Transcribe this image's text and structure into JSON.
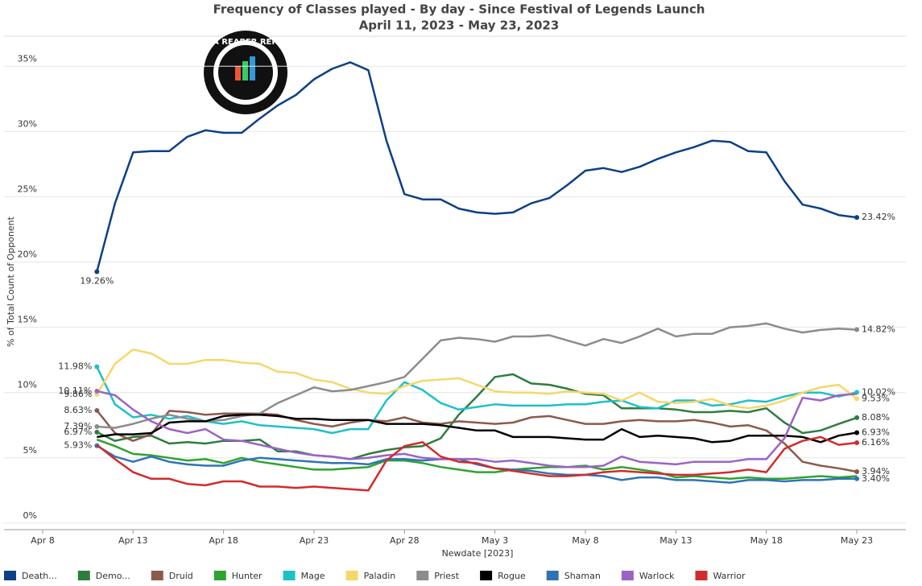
{
  "chart_data": {
    "type": "line",
    "title": "Frequency of Classes played - By day - Since Festival of Legends Launch",
    "subtitle": "April 11, 2023 - May 23, 2023",
    "y_label": "% of Total Count of Opponent",
    "x_label": "Newdate [2023]",
    "logo": "DATA REAPER REPORT",
    "x": [
      "Apr 11",
      "Apr 12",
      "Apr 13",
      "Apr 14",
      "Apr 15",
      "Apr 16",
      "Apr 17",
      "Apr 18",
      "Apr 19",
      "Apr 20",
      "Apr 21",
      "Apr 22",
      "Apr 23",
      "Apr 24",
      "Apr 25",
      "Apr 26",
      "Apr 27",
      "Apr 28",
      "Apr 29",
      "Apr 30",
      "May 1",
      "May 2",
      "May 3",
      "May 4",
      "May 5",
      "May 6",
      "May 7",
      "May 8",
      "May 9",
      "May 10",
      "May 11",
      "May 12",
      "May 13",
      "May 14",
      "May 15",
      "May 16",
      "May 17",
      "May 18",
      "May 19",
      "May 20",
      "May 21",
      "May 22",
      "May 23"
    ],
    "xlim": [
      "Apr 6",
      "May 25"
    ],
    "xticks": [
      "Apr 8",
      "Apr 13",
      "Apr 18",
      "Apr 23",
      "Apr 28",
      "May 3",
      "May 8",
      "May 13",
      "May 18",
      "May 23"
    ],
    "ylim": [
      -0.5,
      37.3
    ],
    "yticks": [
      {
        "value": 0,
        "label": "0%"
      },
      {
        "value": 5,
        "label": "5%"
      },
      {
        "value": 10,
        "label": "10%"
      },
      {
        "value": 15,
        "label": "15%"
      },
      {
        "value": 20,
        "label": "20%"
      },
      {
        "value": 25,
        "label": "25%"
      },
      {
        "value": 30,
        "label": "30%"
      },
      {
        "value": 35,
        "label": "35%"
      }
    ],
    "grid": true,
    "legend": "bottom",
    "series": [
      {
        "name": "Death...",
        "color": "#0e3f87",
        "values": [
          19.26,
          24.5,
          28.4,
          28.5,
          28.5,
          29.6,
          30.1,
          29.9,
          29.9,
          31,
          32,
          32.8,
          34,
          34.8,
          35.3,
          34.7,
          29.3,
          25.2,
          24.8,
          24.8,
          24.1,
          23.8,
          23.7,
          23.8,
          24.5,
          24.9,
          25.9,
          27,
          27.2,
          26.9,
          27.3,
          27.9,
          28.4,
          28.8,
          29.3,
          29.2,
          28.5,
          28.4,
          26.2,
          24.4,
          24.1,
          23.6,
          23.42
        ],
        "value_labels": [
          "19.26%",
          null,
          null,
          null,
          null,
          null,
          null,
          null,
          null,
          null,
          null,
          null,
          null,
          null,
          null,
          null,
          null,
          null,
          null,
          null,
          null,
          null,
          null,
          null,
          null,
          null,
          null,
          null,
          null,
          null,
          null,
          null,
          null,
          null,
          null,
          null,
          null,
          null,
          null,
          null,
          null,
          null,
          "23.42%"
        ]
      },
      {
        "name": "Demo...",
        "color": "#2e7d3e",
        "values": [
          6.97,
          6.3,
          6.6,
          6.7,
          6.1,
          6.2,
          6.1,
          6.3,
          6.3,
          6.4,
          5.5,
          5.5,
          5.2,
          5.1,
          4.9,
          5.3,
          5.6,
          5.8,
          5.9,
          6.5,
          8.3,
          9.7,
          11.2,
          11.4,
          10.7,
          10.6,
          10.3,
          9.9,
          9.8,
          8.8,
          8.8,
          8.8,
          8.7,
          8.5,
          8.5,
          8.6,
          8.5,
          8.8,
          7.7,
          6.9,
          7.1,
          7.6,
          8.08
        ],
        "value_labels": [
          "6.97%",
          null,
          null,
          null,
          null,
          null,
          null,
          null,
          null,
          null,
          null,
          null,
          null,
          null,
          null,
          null,
          null,
          null,
          null,
          null,
          null,
          null,
          null,
          null,
          null,
          null,
          null,
          null,
          null,
          null,
          null,
          null,
          null,
          null,
          null,
          null,
          null,
          null,
          null,
          null,
          null,
          null,
          "8.08%"
        ]
      },
      {
        "name": "Druid",
        "color": "#8c5a4c",
        "values": [
          8.63,
          6.9,
          6.3,
          6.8,
          8.6,
          8.5,
          8.3,
          8.4,
          8.4,
          8.4,
          8.3,
          7.9,
          7.6,
          7.4,
          7.7,
          7.9,
          7.8,
          8.1,
          7.7,
          7.6,
          7.8,
          7.7,
          7.6,
          7.7,
          8.1,
          8.2,
          7.9,
          7.6,
          7.6,
          7.8,
          7.9,
          7.8,
          7.8,
          7.9,
          7.7,
          7.4,
          7.5,
          7.1,
          6.1,
          4.7,
          4.4,
          4.2,
          3.94
        ],
        "value_labels": [
          "8.63%",
          null,
          null,
          null,
          null,
          null,
          null,
          null,
          null,
          null,
          null,
          null,
          null,
          null,
          null,
          null,
          null,
          null,
          null,
          null,
          null,
          null,
          null,
          null,
          null,
          null,
          null,
          null,
          null,
          null,
          null,
          null,
          null,
          null,
          null,
          null,
          null,
          null,
          null,
          null,
          null,
          null,
          "3.94%"
        ]
      },
      {
        "name": "Hunter",
        "color": "#2ea32e",
        "values": [
          6.4,
          5.9,
          5.3,
          5.2,
          5.0,
          4.8,
          4.9,
          4.6,
          5.0,
          4.7,
          4.5,
          4.3,
          4.1,
          4.1,
          4.2,
          4.3,
          4.8,
          4.8,
          4.6,
          4.3,
          4.1,
          3.9,
          3.9,
          4.1,
          4.2,
          4.3,
          4.3,
          4.4,
          4.1,
          4.3,
          4.1,
          3.9,
          3.5,
          3.6,
          3.5,
          3.4,
          3.5,
          3.4,
          3.4,
          3.5,
          3.6,
          3.5,
          3.6
        ]
      },
      {
        "name": "Mage",
        "color": "#1fc0c8",
        "values": [
          11.98,
          9.1,
          8.1,
          8.3,
          8.0,
          8.2,
          7.8,
          7.6,
          7.8,
          7.5,
          7.4,
          7.3,
          7.2,
          6.9,
          7.2,
          7.2,
          9.4,
          10.8,
          10.2,
          9.2,
          8.7,
          8.9,
          9.1,
          9.0,
          9.0,
          9.0,
          9.1,
          9.1,
          9.3,
          9.4,
          8.9,
          8.8,
          9.4,
          9.4,
          9.0,
          9.1,
          9.4,
          9.3,
          9.7,
          10.0,
          10.0,
          9.7,
          10.02
        ],
        "value_labels": [
          "11.98%",
          null,
          null,
          null,
          null,
          null,
          null,
          null,
          null,
          null,
          null,
          null,
          null,
          null,
          null,
          null,
          null,
          null,
          null,
          null,
          null,
          null,
          null,
          null,
          null,
          null,
          null,
          null,
          null,
          null,
          null,
          null,
          null,
          null,
          null,
          null,
          null,
          null,
          null,
          null,
          null,
          null,
          "10.02%"
        ]
      },
      {
        "name": "Paladin",
        "color": "#f5d76a",
        "values": [
          9.86,
          12.2,
          13.3,
          13.0,
          12.2,
          12.2,
          12.5,
          12.5,
          12.3,
          12.2,
          11.6,
          11.5,
          11.0,
          10.8,
          10.3,
          10.0,
          9.9,
          10.5,
          10.9,
          11.0,
          11.1,
          10.6,
          10.1,
          10.0,
          10.0,
          9.9,
          10.1,
          10.0,
          9.9,
          9.4,
          10.0,
          9.3,
          9.2,
          9.3,
          9.5,
          9.0,
          8.8,
          9.0,
          9.4,
          10.0,
          10.4,
          10.6,
          9.53
        ],
        "value_labels": [
          "9.86%",
          null,
          null,
          null,
          null,
          null,
          null,
          null,
          null,
          null,
          null,
          null,
          null,
          null,
          null,
          null,
          null,
          null,
          null,
          null,
          null,
          null,
          null,
          null,
          null,
          null,
          null,
          null,
          null,
          null,
          null,
          null,
          null,
          null,
          null,
          null,
          null,
          null,
          null,
          null,
          null,
          null,
          "9.53%"
        ]
      },
      {
        "name": "Priest",
        "color": "#8c8c8c",
        "values": [
          7.39,
          7.3,
          7.6,
          8.0,
          8.3,
          8.0,
          7.8,
          7.9,
          8.2,
          8.4,
          9.2,
          9.8,
          10.4,
          10.1,
          10.2,
          10.5,
          10.8,
          11.2,
          12.6,
          14.0,
          14.2,
          14.1,
          13.9,
          14.3,
          14.3,
          14.4,
          14.0,
          13.6,
          14.1,
          13.8,
          14.3,
          14.9,
          14.3,
          14.5,
          14.5,
          15.0,
          15.1,
          15.3,
          14.9,
          14.6,
          14.8,
          14.9,
          14.82
        ],
        "value_labels": [
          "7.39%",
          null,
          null,
          null,
          null,
          null,
          null,
          null,
          null,
          null,
          null,
          null,
          null,
          null,
          null,
          null,
          null,
          null,
          null,
          null,
          null,
          null,
          null,
          null,
          null,
          null,
          null,
          null,
          null,
          null,
          null,
          null,
          null,
          null,
          null,
          null,
          null,
          null,
          null,
          null,
          null,
          null,
          "14.82%"
        ]
      },
      {
        "name": "Rogue",
        "color": "#000000",
        "values": [
          6.6,
          6.8,
          6.8,
          6.9,
          7.7,
          7.8,
          7.8,
          8.2,
          8.3,
          8.3,
          8.2,
          8.0,
          8.0,
          7.9,
          7.9,
          7.9,
          7.6,
          7.6,
          7.6,
          7.5,
          7.3,
          7.1,
          7.1,
          6.6,
          6.6,
          6.6,
          6.5,
          6.4,
          6.4,
          7.2,
          6.6,
          6.7,
          6.6,
          6.5,
          6.2,
          6.3,
          6.7,
          6.7,
          6.7,
          6.6,
          6.2,
          6.7,
          6.93
        ],
        "value_labels": [
          null,
          null,
          null,
          null,
          null,
          null,
          null,
          null,
          null,
          null,
          null,
          null,
          null,
          null,
          null,
          null,
          null,
          null,
          null,
          null,
          null,
          null,
          null,
          null,
          null,
          null,
          null,
          null,
          null,
          null,
          null,
          null,
          null,
          null,
          null,
          null,
          null,
          null,
          null,
          null,
          null,
          null,
          "6.93%"
        ]
      },
      {
        "name": "Shaman",
        "color": "#2f73b5",
        "values": [
          5.93,
          5.1,
          4.7,
          5.1,
          4.7,
          4.5,
          4.4,
          4.4,
          4.8,
          5.0,
          4.9,
          4.8,
          4.7,
          4.6,
          4.6,
          4.5,
          4.9,
          4.9,
          4.8,
          4.9,
          4.9,
          4.5,
          4.2,
          4.1,
          4.0,
          3.8,
          3.7,
          3.7,
          3.6,
          3.3,
          3.5,
          3.5,
          3.3,
          3.3,
          3.2,
          3.1,
          3.3,
          3.3,
          3.2,
          3.3,
          3.3,
          3.4,
          3.4
        ],
        "value_labels": [
          "5.93%",
          null,
          null,
          null,
          null,
          null,
          null,
          null,
          null,
          null,
          null,
          null,
          null,
          null,
          null,
          null,
          null,
          null,
          null,
          null,
          null,
          null,
          null,
          null,
          null,
          null,
          null,
          null,
          null,
          null,
          null,
          null,
          null,
          null,
          null,
          null,
          null,
          null,
          null,
          null,
          null,
          null,
          "3.40%"
        ]
      },
      {
        "name": "Warlock",
        "color": "#9b63c4",
        "values": [
          10.11,
          9.8,
          8.7,
          7.8,
          7.2,
          6.9,
          7.2,
          6.4,
          6.3,
          6.0,
          5.7,
          5.4,
          5.2,
          5.1,
          4.9,
          5.0,
          5.2,
          5.3,
          5.0,
          4.9,
          4.9,
          4.9,
          4.7,
          4.8,
          4.6,
          4.4,
          4.3,
          4.3,
          4.4,
          5.1,
          4.7,
          4.6,
          4.5,
          4.7,
          4.7,
          4.7,
          4.9,
          4.9,
          6.5,
          9.6,
          9.4,
          9.8,
          9.9
        ],
        "value_labels": [
          "10.11%",
          null,
          null,
          null,
          null,
          null,
          null,
          null,
          null,
          null,
          null,
          null,
          null,
          null,
          null,
          null,
          null,
          null,
          null,
          null,
          null,
          null,
          null,
          null,
          null,
          null,
          null,
          null,
          null,
          null,
          null,
          null,
          null,
          null,
          null,
          null,
          null,
          null,
          null,
          null,
          null,
          null,
          null
        ]
      },
      {
        "name": "Warrior",
        "color": "#d22b2b",
        "values": [
          6.0,
          4.9,
          3.9,
          3.4,
          3.4,
          3.0,
          2.9,
          3.2,
          3.2,
          2.8,
          2.8,
          2.7,
          2.8,
          2.7,
          2.6,
          2.5,
          4.8,
          5.9,
          6.2,
          5.1,
          4.7,
          4.6,
          4.2,
          4.0,
          3.8,
          3.6,
          3.6,
          3.7,
          3.9,
          4.0,
          3.9,
          3.8,
          3.7,
          3.7,
          3.8,
          3.9,
          4.1,
          3.9,
          5.7,
          6.3,
          6.6,
          6.0,
          6.16
        ],
        "value_labels": [
          null,
          null,
          null,
          null,
          null,
          null,
          null,
          null,
          null,
          null,
          null,
          null,
          null,
          null,
          null,
          null,
          null,
          null,
          null,
          null,
          null,
          null,
          null,
          null,
          null,
          null,
          null,
          null,
          null,
          null,
          null,
          null,
          null,
          null,
          null,
          null,
          null,
          null,
          null,
          null,
          null,
          null,
          "6.16%"
        ]
      }
    ]
  }
}
